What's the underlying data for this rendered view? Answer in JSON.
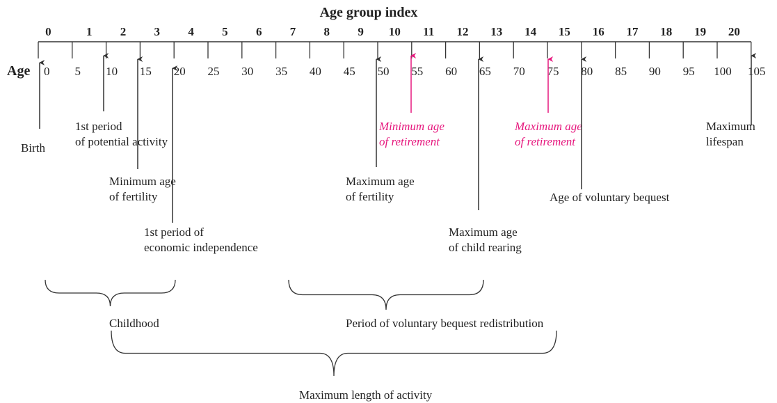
{
  "header": {
    "title": "Age group index",
    "axis_label": "Age"
  },
  "index_ticks": [
    "0",
    "1",
    "2",
    "3",
    "4",
    "5",
    "6",
    "7",
    "8",
    "9",
    "10",
    "11",
    "12",
    "13",
    "14",
    "15",
    "16",
    "17",
    "18",
    "19",
    "20"
  ],
  "age_ticks": [
    "0",
    "5",
    "10",
    "15",
    "20",
    "25",
    "30",
    "35",
    "40",
    "45",
    "50",
    "55",
    "60",
    "65",
    "70",
    "75",
    "80",
    "85",
    "90",
    "95",
    "100",
    "105"
  ],
  "annotations": [
    {
      "lines": [
        "Birth"
      ]
    },
    {
      "lines": [
        "1st period",
        "of potential activity"
      ]
    },
    {
      "lines": [
        "Minimum age",
        "of fertility"
      ]
    },
    {
      "lines": [
        "1st period of",
        "economic independence"
      ]
    },
    {
      "lines": [
        "Maximum age",
        "of fertility"
      ]
    },
    {
      "lines": [
        "Minimum age",
        "of retirement"
      ]
    },
    {
      "lines": [
        "Maximum age",
        "of child rearing"
      ]
    },
    {
      "lines": [
        "Maximum age",
        "of retirement"
      ]
    },
    {
      "lines": [
        "Age of voluntary bequest"
      ]
    },
    {
      "lines": [
        "Maximum",
        "lifespan"
      ]
    }
  ],
  "braces": [
    "Childhood",
    "Period of voluntary bequest redistribution",
    "Maximum length of activity"
  ]
}
